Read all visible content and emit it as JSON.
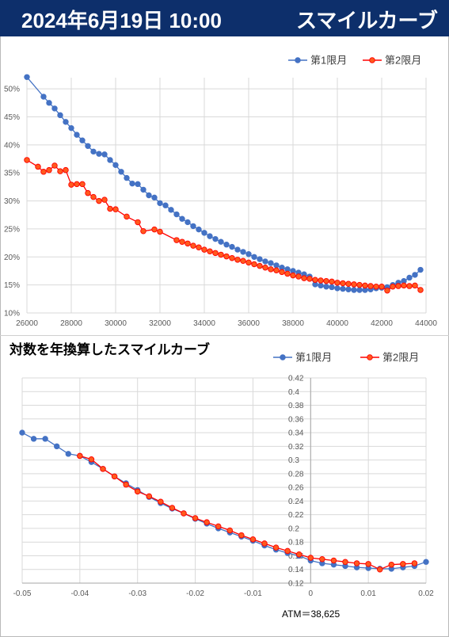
{
  "header": {
    "date": "2024年6月19日 10:00",
    "title": "スマイルカーブ",
    "bg_color": "#0d2f6b"
  },
  "chart2_title": "対数を年換算したスマイルカーブ",
  "atm_label": "ATM＝38,625",
  "colors": {
    "series1": "#4472c4",
    "series2": "#ff0000",
    "series2_fill": "#ff5a1e"
  },
  "chart_data": [
    {
      "type": "line",
      "title": "",
      "xlabel": "",
      "ylabel": "",
      "xlim": [
        26000,
        44000
      ],
      "ylim": [
        0.1,
        0.52
      ],
      "x_ticks": [
        "26000",
        "28000",
        "30000",
        "32000",
        "34000",
        "36000",
        "38000",
        "40000",
        "42000",
        "44000"
      ],
      "y_ticks": [
        "10%",
        "15%",
        "20%",
        "25%",
        "30%",
        "35%",
        "40%",
        "45%",
        "50%"
      ],
      "grid": true,
      "legend": "top-right",
      "series": [
        {
          "name": "第1限月",
          "color": "#4472c4",
          "x": [
            26000,
            26750,
            27000,
            27250,
            27500,
            27750,
            28000,
            28250,
            28500,
            28750,
            29000,
            29250,
            29500,
            29750,
            30000,
            30250,
            30500,
            30750,
            31000,
            31250,
            31500,
            31750,
            32000,
            32250,
            32500,
            32750,
            33000,
            33250,
            33500,
            33750,
            34000,
            34250,
            34500,
            34750,
            35000,
            35250,
            35500,
            35750,
            36000,
            36250,
            36500,
            36750,
            37000,
            37250,
            37500,
            37750,
            38000,
            38250,
            38500,
            38750,
            39000,
            39250,
            39500,
            39750,
            40000,
            40250,
            40500,
            40750,
            41000,
            41250,
            41500,
            41750,
            42000,
            42250,
            42500,
            42750,
            43000,
            43250,
            43500,
            43750
          ],
          "y": [
            0.521,
            0.486,
            0.475,
            0.465,
            0.453,
            0.441,
            0.43,
            0.418,
            0.408,
            0.398,
            0.388,
            0.384,
            0.383,
            0.373,
            0.364,
            0.352,
            0.341,
            0.331,
            0.33,
            0.32,
            0.31,
            0.306,
            0.296,
            0.292,
            0.284,
            0.276,
            0.268,
            0.262,
            0.255,
            0.249,
            0.243,
            0.237,
            0.232,
            0.227,
            0.222,
            0.218,
            0.213,
            0.209,
            0.205,
            0.2,
            0.196,
            0.192,
            0.189,
            0.185,
            0.181,
            0.178,
            0.175,
            0.172,
            0.169,
            0.165,
            0.151,
            0.149,
            0.147,
            0.146,
            0.144,
            0.143,
            0.142,
            0.141,
            0.141,
            0.141,
            0.142,
            0.144,
            0.145,
            0.146,
            0.15,
            0.154,
            0.157,
            0.163,
            0.168,
            0.177
          ]
        },
        {
          "name": "第2限月",
          "color": "#ff0000",
          "x": [
            26000,
            26500,
            26750,
            27000,
            27250,
            27500,
            27750,
            28000,
            28250,
            28500,
            28750,
            29000,
            29250,
            29500,
            29750,
            30000,
            30500,
            31000,
            31250,
            31750,
            32000,
            32750,
            33000,
            33250,
            33500,
            33750,
            34000,
            34250,
            34500,
            34750,
            35000,
            35250,
            35500,
            35750,
            36000,
            36250,
            36500,
            36750,
            37000,
            37250,
            37500,
            37750,
            38000,
            38250,
            38500,
            38750,
            39000,
            39250,
            39500,
            39750,
            40000,
            40250,
            40500,
            40750,
            41000,
            41250,
            41500,
            41750,
            42000,
            42250,
            42500,
            42750,
            43000,
            43250,
            43500,
            43750
          ],
          "y": [
            0.373,
            0.361,
            0.352,
            0.355,
            0.363,
            0.353,
            0.355,
            0.329,
            0.33,
            0.33,
            0.314,
            0.307,
            0.3,
            0.302,
            0.286,
            0.285,
            0.272,
            0.262,
            0.246,
            0.249,
            0.245,
            0.23,
            0.227,
            0.224,
            0.22,
            0.217,
            0.213,
            0.21,
            0.207,
            0.204,
            0.201,
            0.198,
            0.195,
            0.193,
            0.19,
            0.187,
            0.184,
            0.181,
            0.178,
            0.176,
            0.173,
            0.17,
            0.167,
            0.165,
            0.162,
            0.161,
            0.159,
            0.158,
            0.157,
            0.156,
            0.154,
            0.153,
            0.152,
            0.151,
            0.15,
            0.149,
            0.148,
            0.147,
            0.147,
            0.14,
            0.147,
            0.148,
            0.149,
            0.148,
            0.149,
            0.141
          ]
        }
      ]
    },
    {
      "type": "line",
      "title": "対数を年換算したスマイルカーブ",
      "xlabel": "",
      "ylabel": "",
      "xlim": [
        -0.05,
        0.02
      ],
      "ylim": [
        0.12,
        0.42
      ],
      "x_ticks": [
        "-0.05",
        "-0.04",
        "-0.03",
        "-0.02",
        "-0.01",
        "0",
        "0.01",
        "0.02"
      ],
      "y_ticks": [
        "0.12",
        "0.14",
        "0.16",
        "0.18",
        "0.2",
        "0.22",
        "0.24",
        "0.26",
        "0.28",
        "0.3",
        "0.32",
        "0.34",
        "0.36",
        "0.38",
        "0.4",
        "0.42"
      ],
      "grid": true,
      "legend": "top-right",
      "series": [
        {
          "name": "第1限月",
          "color": "#4472c4",
          "x": [
            -0.05,
            -0.048,
            -0.046,
            -0.044,
            -0.042,
            -0.04,
            -0.038,
            -0.036,
            -0.034,
            -0.032,
            -0.03,
            -0.028,
            -0.026,
            -0.024,
            -0.022,
            -0.02,
            -0.018,
            -0.016,
            -0.014,
            -0.012,
            -0.01,
            -0.008,
            -0.006,
            -0.004,
            -0.002,
            0.0,
            0.002,
            0.004,
            0.006,
            0.008,
            0.01,
            0.012,
            0.014,
            0.016,
            0.018,
            0.02
          ],
          "y": [
            0.34,
            0.331,
            0.331,
            0.32,
            0.309,
            0.306,
            0.297,
            0.287,
            0.276,
            0.266,
            0.256,
            0.246,
            0.237,
            0.229,
            0.222,
            0.214,
            0.207,
            0.2,
            0.194,
            0.188,
            0.182,
            0.175,
            0.169,
            0.164,
            0.16,
            0.153,
            0.149,
            0.147,
            0.145,
            0.143,
            0.142,
            0.141,
            0.141,
            0.143,
            0.145,
            0.151
          ]
        },
        {
          "name": "第2限月",
          "color": "#ff0000",
          "x": [
            -0.04,
            -0.038,
            -0.036,
            -0.034,
            -0.032,
            -0.03,
            -0.028,
            -0.026,
            -0.024,
            -0.022,
            -0.02,
            -0.018,
            -0.016,
            -0.014,
            -0.012,
            -0.01,
            -0.008,
            -0.006,
            -0.004,
            -0.002,
            0.0,
            0.002,
            0.004,
            0.006,
            0.008,
            0.01,
            0.012,
            0.014,
            0.016,
            0.018
          ],
          "y": [
            0.306,
            0.301,
            0.287,
            0.276,
            0.264,
            0.254,
            0.247,
            0.239,
            0.23,
            0.222,
            0.215,
            0.209,
            0.203,
            0.197,
            0.19,
            0.184,
            0.178,
            0.172,
            0.167,
            0.162,
            0.157,
            0.155,
            0.153,
            0.151,
            0.149,
            0.148,
            0.14,
            0.147,
            0.148,
            0.149
          ]
        }
      ]
    }
  ]
}
